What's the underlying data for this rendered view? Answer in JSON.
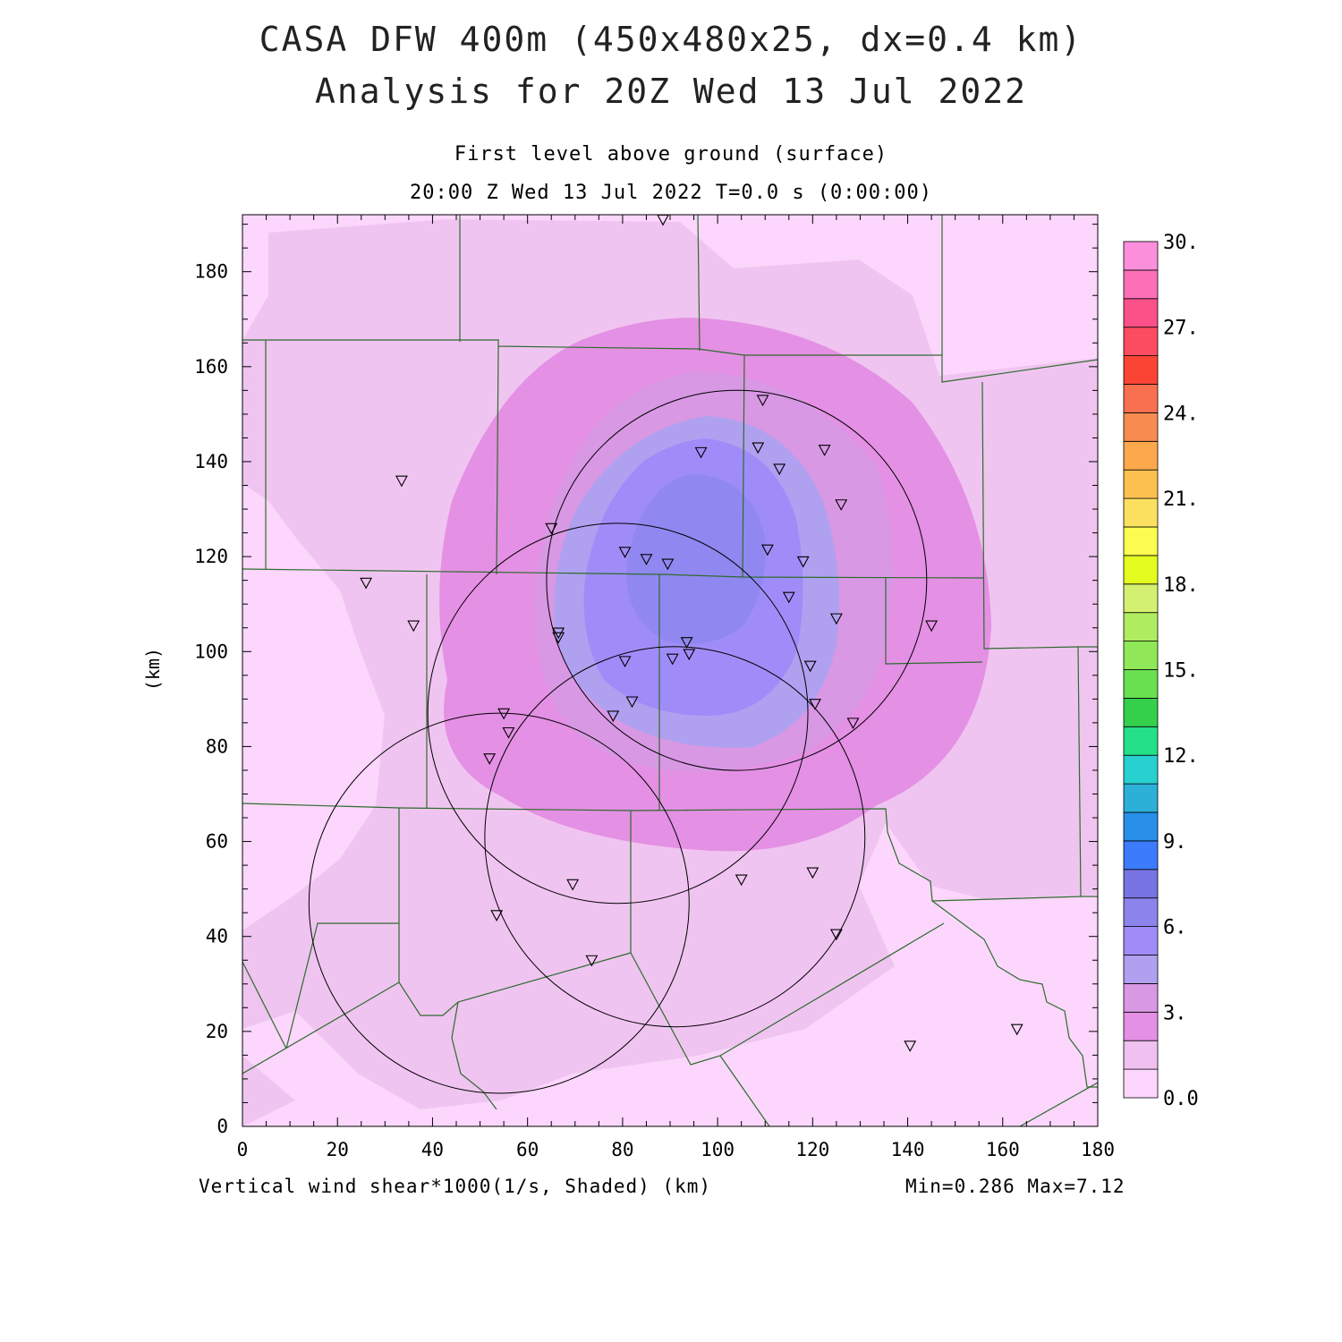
{
  "header": {
    "title_line1": "CASA DFW 400m (450x480x25, dx=0.4 km)",
    "title_line2": "Analysis for 20Z Wed 13 Jul 2022",
    "subtitle_line1": "First level above ground (surface)",
    "subtitle_line2": "20:00 Z Wed 13 Jul 2022   T=0.0 s (0:00:00)"
  },
  "footer": {
    "field_label": "Vertical wind shear*1000(1/s, Shaded)  (km)",
    "minmax": "Min=0.286 Max=7.12"
  },
  "axes": {
    "x_range": [
      0,
      180
    ],
    "y_range": [
      0,
      192
    ],
    "x_ticks": [
      "0",
      "20",
      "40",
      "60",
      "80",
      "100",
      "120",
      "140",
      "160",
      "180"
    ],
    "y_ticks": [
      "0",
      "20",
      "40",
      "60",
      "80",
      "100",
      "120",
      "140",
      "160",
      "180"
    ],
    "y_label": "(km)"
  },
  "colorbar": {
    "labels": [
      "0.0",
      "3.",
      "6.",
      "9.",
      "12.",
      "15.",
      "18.",
      "21.",
      "24.",
      "27.",
      "30."
    ],
    "colors": [
      "#fcd6fc",
      "#f0c0f0",
      "#e490e4",
      "#d898e4",
      "#b0a0f0",
      "#a08cf8",
      "#8c84ec",
      "#7874e4",
      "#3c7cfc",
      "#2890e8",
      "#2cb0d8",
      "#28d0d0",
      "#24e088",
      "#34d04c",
      "#68e050",
      "#90e858",
      "#b0ec60",
      "#d4f070",
      "#e4fc20",
      "#fcfc50",
      "#fce060",
      "#fcc050",
      "#fca84c",
      "#f88c50",
      "#f87050",
      "#fc4434",
      "#fc4c60",
      "#fc5088",
      "#fc70b8",
      "#fc90dc"
    ]
  },
  "stations": [
    {
      "x": 88.5,
      "y": 191
    },
    {
      "x": 109.5,
      "y": 153
    },
    {
      "x": 96.5,
      "y": 142
    },
    {
      "x": 108.5,
      "y": 143
    },
    {
      "x": 122.5,
      "y": 142.5
    },
    {
      "x": 113,
      "y": 138.5
    },
    {
      "x": 126,
      "y": 131
    },
    {
      "x": 33.5,
      "y": 136
    },
    {
      "x": 65,
      "y": 126
    },
    {
      "x": 80.5,
      "y": 121
    },
    {
      "x": 85,
      "y": 119.5
    },
    {
      "x": 89.5,
      "y": 118.5
    },
    {
      "x": 110.5,
      "y": 121.5
    },
    {
      "x": 118,
      "y": 119
    },
    {
      "x": 26,
      "y": 114.5
    },
    {
      "x": 115,
      "y": 111.5
    },
    {
      "x": 125,
      "y": 107
    },
    {
      "x": 145,
      "y": 105.5
    },
    {
      "x": 36,
      "y": 105.5
    },
    {
      "x": 66.5,
      "y": 104
    },
    {
      "x": 66.5,
      "y": 103
    },
    {
      "x": 93.5,
      "y": 102
    },
    {
      "x": 94,
      "y": 99.5
    },
    {
      "x": 80.5,
      "y": 98
    },
    {
      "x": 90.5,
      "y": 98.5
    },
    {
      "x": 119.5,
      "y": 97
    },
    {
      "x": 82,
      "y": 89.5
    },
    {
      "x": 120.5,
      "y": 89
    },
    {
      "x": 55,
      "y": 87
    },
    {
      "x": 78,
      "y": 86.5
    },
    {
      "x": 128.5,
      "y": 85
    },
    {
      "x": 56,
      "y": 83
    },
    {
      "x": 52,
      "y": 77.5
    },
    {
      "x": 120,
      "y": 53.5
    },
    {
      "x": 105,
      "y": 52
    },
    {
      "x": 69.5,
      "y": 51
    },
    {
      "x": 53.5,
      "y": 44.5
    },
    {
      "x": 125,
      "y": 40.5
    },
    {
      "x": 73.5,
      "y": 35
    },
    {
      "x": 163,
      "y": 20.5
    },
    {
      "x": 140.5,
      "y": 17
    }
  ],
  "radar_rings": [
    {
      "cx": 104,
      "cy": 115,
      "r": 40
    },
    {
      "cx": 79,
      "cy": 87,
      "r": 40
    },
    {
      "cx": 91,
      "cy": 61,
      "r": 40
    },
    {
      "cx": 54,
      "cy": 47,
      "r": 40
    }
  ]
}
